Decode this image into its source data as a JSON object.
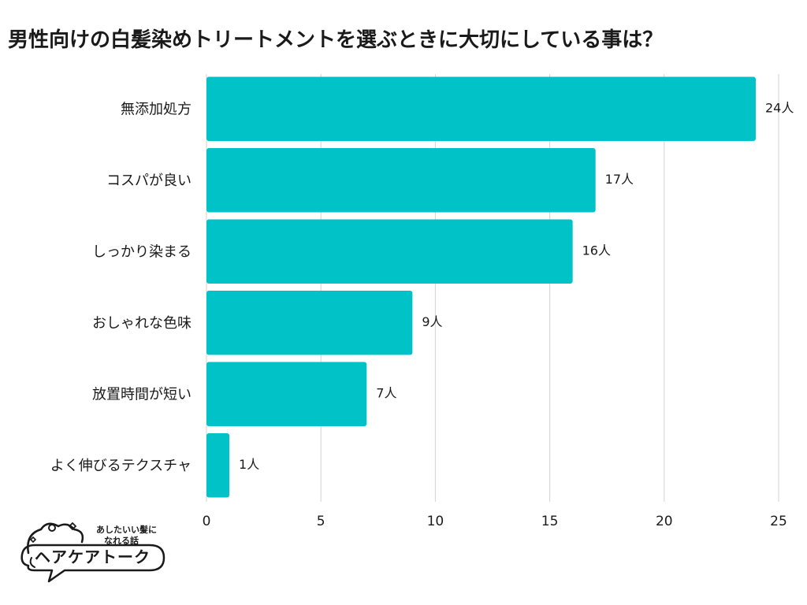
{
  "chart_data": {
    "type": "bar",
    "orientation": "horizontal",
    "title": "男性向けの白髪染めトリートメントを選ぶときに大切にしている事は？",
    "categories": [
      "無添加処方",
      "コスパが良い",
      "しっかり染まる",
      "おしゃれな色味",
      "放置時間が短い",
      "よく伸びるテクスチャ"
    ],
    "values": [
      24,
      17,
      16,
      9,
      7,
      1
    ],
    "value_suffix": "人",
    "xlim": [
      0,
      25
    ],
    "xticks": [
      0,
      5,
      10,
      15,
      20,
      25
    ],
    "xlabel": "",
    "ylabel": "",
    "grid": true,
    "bar_color": "#00c2c7"
  },
  "logo": {
    "tagline_line1": "あしたいい髪に",
    "tagline_line2": "なれる話",
    "name": "ヘアケアトーク"
  }
}
